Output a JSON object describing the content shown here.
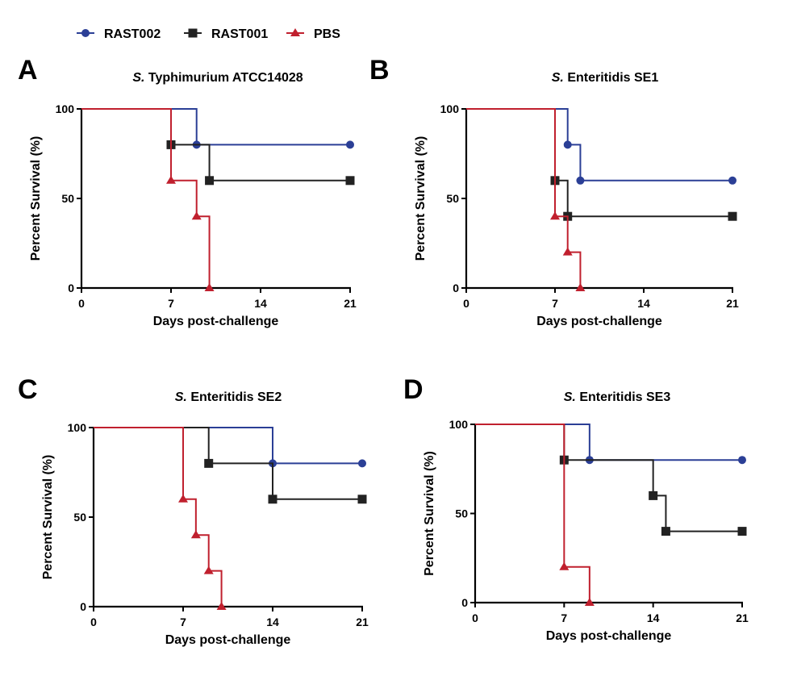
{
  "legend": {
    "position": "top-left",
    "items": [
      {
        "name": "RAST002",
        "color": "#2b3f96",
        "marker": "circle"
      },
      {
        "name": "RAST001",
        "color": "#222222",
        "marker": "square"
      },
      {
        "name": "PBS",
        "color": "#c0202e",
        "marker": "triangle"
      }
    ]
  },
  "chart_data": [
    {
      "type": "line",
      "subtype": "kaplan-meier-step",
      "letter": "A",
      "title_italic": "S.",
      "title_rest": " Typhimurium ATCC14028",
      "xlabel": "Days post-challenge",
      "ylabel": "Percent Survival (%)",
      "xlim": [
        0,
        21
      ],
      "ylim": [
        0,
        100
      ],
      "xticks": [
        0,
        7,
        14,
        21
      ],
      "yticks": [
        0,
        50,
        100
      ],
      "grid": false,
      "series": [
        {
          "name": "RAST002",
          "x": [
            0,
            9,
            21
          ],
          "y": [
            100,
            80,
            80
          ]
        },
        {
          "name": "RAST001",
          "x": [
            0,
            7,
            10,
            21
          ],
          "y": [
            100,
            80,
            60,
            60
          ]
        },
        {
          "name": "PBS",
          "x": [
            0,
            7,
            9,
            10
          ],
          "y": [
            100,
            60,
            40,
            0
          ]
        }
      ]
    },
    {
      "type": "line",
      "subtype": "kaplan-meier-step",
      "letter": "B",
      "title_italic": "S.",
      "title_rest": " Enteritidis SE1",
      "xlabel": "Days post-challenge",
      "ylabel": "Percent Survival (%)",
      "xlim": [
        0,
        21
      ],
      "ylim": [
        0,
        100
      ],
      "xticks": [
        0,
        7,
        14,
        21
      ],
      "yticks": [
        0,
        50,
        100
      ],
      "grid": false,
      "series": [
        {
          "name": "RAST002",
          "x": [
            0,
            8,
            9,
            21
          ],
          "y": [
            100,
            80,
            60,
            60
          ]
        },
        {
          "name": "RAST001",
          "x": [
            0,
            7,
            8,
            21
          ],
          "y": [
            100,
            60,
            40,
            40
          ]
        },
        {
          "name": "PBS",
          "x": [
            0,
            7,
            8,
            9
          ],
          "y": [
            100,
            40,
            20,
            0
          ]
        }
      ]
    },
    {
      "type": "line",
      "subtype": "kaplan-meier-step",
      "letter": "C",
      "title_italic": "S.",
      "title_rest": " Enteritidis SE2",
      "xlabel": "Days post-challenge",
      "ylabel": "Percent Survival (%)",
      "xlim": [
        0,
        21
      ],
      "ylim": [
        0,
        100
      ],
      "xticks": [
        0,
        7,
        14,
        21
      ],
      "yticks": [
        0,
        50,
        100
      ],
      "grid": false,
      "series": [
        {
          "name": "RAST002",
          "x": [
            0,
            14,
            21
          ],
          "y": [
            100,
            80,
            80
          ]
        },
        {
          "name": "RAST001",
          "x": [
            0,
            9,
            14,
            21
          ],
          "y": [
            100,
            80,
            60,
            60
          ]
        },
        {
          "name": "PBS",
          "x": [
            0,
            7,
            8,
            9,
            10
          ],
          "y": [
            100,
            60,
            40,
            20,
            0
          ]
        }
      ]
    },
    {
      "type": "line",
      "subtype": "kaplan-meier-step",
      "letter": "D",
      "title_italic": "S.",
      "title_rest": " Enteritidis SE3",
      "xlabel": "Days post-challenge",
      "ylabel": "Percent Survival (%)",
      "xlim": [
        0,
        21
      ],
      "ylim": [
        0,
        100
      ],
      "xticks": [
        0,
        7,
        14,
        21
      ],
      "yticks": [
        0,
        50,
        100
      ],
      "grid": false,
      "series": [
        {
          "name": "RAST002",
          "x": [
            0,
            9,
            21
          ],
          "y": [
            100,
            80,
            80
          ]
        },
        {
          "name": "RAST001",
          "x": [
            0,
            7,
            14,
            15,
            21
          ],
          "y": [
            100,
            80,
            60,
            40,
            40
          ]
        },
        {
          "name": "PBS",
          "x": [
            0,
            7,
            9
          ],
          "y": [
            100,
            20,
            0
          ]
        }
      ]
    }
  ]
}
